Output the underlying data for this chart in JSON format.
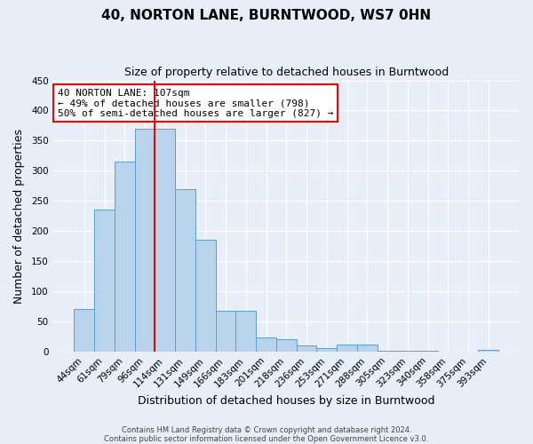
{
  "title": "40, NORTON LANE, BURNTWOOD, WS7 0HN",
  "subtitle": "Size of property relative to detached houses in Burntwood",
  "xlabel": "Distribution of detached houses by size in Burntwood",
  "ylabel": "Number of detached properties",
  "categories": [
    "44sqm",
    "61sqm",
    "79sqm",
    "96sqm",
    "114sqm",
    "131sqm",
    "149sqm",
    "166sqm",
    "183sqm",
    "201sqm",
    "218sqm",
    "236sqm",
    "253sqm",
    "271sqm",
    "288sqm",
    "305sqm",
    "323sqm",
    "340sqm",
    "358sqm",
    "375sqm",
    "393sqm"
  ],
  "values": [
    70,
    235,
    315,
    370,
    370,
    270,
    185,
    68,
    68,
    23,
    20,
    10,
    5,
    12,
    12,
    1,
    1,
    1,
    0,
    0,
    3
  ],
  "bar_color": "#b8d4ea",
  "bar_edge_color": "#5a9fd4",
  "vline_color": "red",
  "vline_x_index": 3.5,
  "ylim": [
    0,
    450
  ],
  "yticks": [
    0,
    50,
    100,
    150,
    200,
    250,
    300,
    350,
    400,
    450
  ],
  "annotation_line1": "40 NORTON LANE: 107sqm",
  "annotation_line2": "← 49% of detached houses are smaller (798)",
  "annotation_line3": "50% of semi-detached houses are larger (827) →",
  "annotation_box_color": "#ffffff",
  "annotation_box_edge_color": "red",
  "footer_line1": "Contains HM Land Registry data © Crown copyright and database right 2024.",
  "footer_line2": "Contains public sector information licensed under the Open Government Licence v3.0.",
  "background_color": "#e8eef8",
  "grid_color": "#ffffff",
  "title_fontsize": 11,
  "subtitle_fontsize": 9,
  "xlabel_fontsize": 9,
  "ylabel_fontsize": 9,
  "tick_fontsize": 7.5,
  "footer_fontsize": 6.0
}
